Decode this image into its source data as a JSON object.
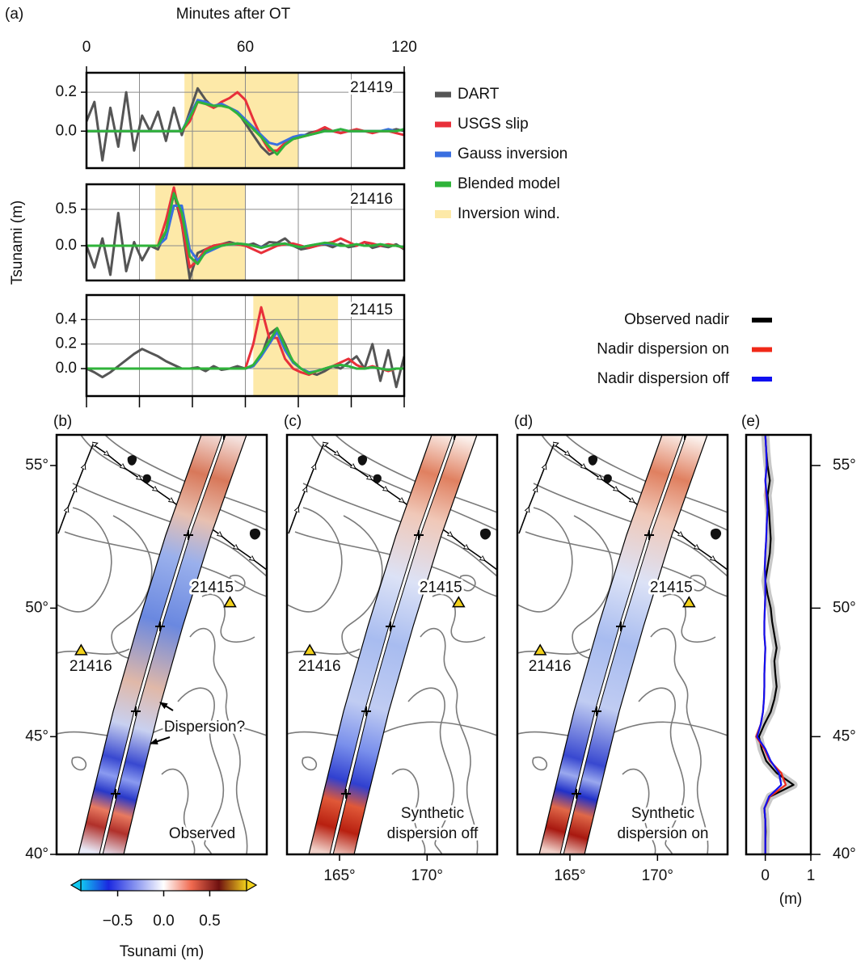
{
  "chart_data": [
    {
      "type": "line",
      "panel_label": "(a)",
      "xlabel": "Minutes after OT",
      "ylabel": "Tsunami (m)",
      "annotation": "21419",
      "x": [
        0,
        3,
        6,
        9,
        12,
        15,
        18,
        21,
        24,
        27,
        30,
        33,
        36,
        39,
        42,
        45,
        48,
        51,
        54,
        57,
        60,
        63,
        66,
        69,
        72,
        75,
        78,
        81,
        84,
        87,
        90,
        93,
        96,
        99,
        102,
        105,
        108,
        111,
        114,
        117,
        120
      ],
      "xlim": [
        0,
        120
      ],
      "xticks": [
        0,
        60,
        120
      ],
      "xgrid": [
        20,
        40,
        60,
        80,
        100
      ],
      "ylim": [
        -0.19,
        0.3
      ],
      "yticks": [
        0.2,
        {
          "value": 0,
          "label": "0.0"
        }
      ],
      "window": [
        37,
        80
      ],
      "window_label": "Inversion wind.",
      "window_color": "#fde9a8",
      "series": [
        {
          "name": "DART",
          "color": "#555555",
          "values": [
            0.05,
            0.15,
            -0.15,
            0.12,
            -0.08,
            0.2,
            -0.1,
            0.08,
            0.0,
            0.1,
            -0.05,
            0.12,
            -0.02,
            0.1,
            0.22,
            0.16,
            0.12,
            0.14,
            0.12,
            0.1,
            0.04,
            -0.02,
            -0.08,
            -0.12,
            -0.1,
            -0.07,
            -0.04,
            -0.03,
            -0.01,
            0.0,
            0.01,
            0.0,
            -0.01,
            0.0,
            0.0,
            0.0,
            0.0,
            0.0,
            0.0,
            0.01,
            0.0
          ]
        },
        {
          "name": "USGS slip",
          "color": "#e8303a",
          "values": [
            0,
            0,
            0,
            0,
            0,
            0,
            0,
            0,
            0,
            0,
            0,
            0,
            0.0,
            0.05,
            0.15,
            0.14,
            0.12,
            0.15,
            0.17,
            0.2,
            0.16,
            0.06,
            -0.03,
            -0.1,
            -0.1,
            -0.06,
            -0.04,
            -0.03,
            -0.02,
            0.0,
            0.02,
            0.0,
            -0.01,
            0.0,
            0.01,
            0.0,
            -0.01,
            0.0,
            0.0,
            -0.01,
            -0.02
          ]
        },
        {
          "name": "Gauss inversion",
          "color": "#3a6fe0",
          "values": [
            0,
            0,
            0,
            0,
            0,
            0,
            0,
            0,
            0,
            0,
            0,
            0,
            0.0,
            0.08,
            0.16,
            0.15,
            0.13,
            0.14,
            0.12,
            0.1,
            0.06,
            0.02,
            -0.02,
            -0.06,
            -0.07,
            -0.05,
            -0.03,
            -0.02,
            -0.02,
            -0.01,
            0.0,
            0.0,
            0.01,
            0.0,
            0.0,
            0.0,
            0.0,
            0.0,
            0.01,
            0.0,
            0.01
          ]
        },
        {
          "name": "Blended model",
          "color": "#2fb33a",
          "values": [
            0,
            0,
            0,
            0,
            0,
            0,
            0,
            0,
            0,
            0,
            0,
            0,
            0.0,
            0.07,
            0.15,
            0.14,
            0.13,
            0.13,
            0.12,
            0.09,
            0.05,
            0.01,
            -0.03,
            -0.08,
            -0.12,
            -0.07,
            -0.04,
            -0.03,
            -0.02,
            -0.01,
            0.0,
            0.0,
            0.01,
            0.0,
            0.0,
            0.0,
            0.0,
            0.0,
            0.0,
            0.0,
            0.01
          ]
        }
      ]
    },
    {
      "type": "line",
      "annotation": "21416",
      "x": [
        0,
        3,
        6,
        9,
        12,
        15,
        18,
        21,
        24,
        27,
        30,
        33,
        36,
        39,
        42,
        45,
        48,
        51,
        54,
        57,
        60,
        63,
        66,
        69,
        72,
        75,
        78,
        81,
        84,
        87,
        90,
        93,
        96,
        99,
        102,
        105,
        108,
        111,
        114,
        117,
        120
      ],
      "xlim": [
        0,
        120
      ],
      "xgrid": [
        20,
        40,
        60,
        80,
        100
      ],
      "ylim": [
        -0.478,
        0.844
      ],
      "yticks": [
        0.5,
        {
          "value": 0,
          "label": "0.0"
        }
      ],
      "window": [
        26,
        60
      ],
      "window_color": "#fde9a8",
      "series": [
        {
          "name": "DART",
          "color": "#555555",
          "values": [
            0.0,
            -0.3,
            0.1,
            -0.4,
            0.45,
            -0.35,
            0.05,
            -0.2,
            0.0,
            -0.05,
            0.2,
            0.72,
            0.3,
            -0.45,
            -0.1,
            -0.05,
            0.0,
            0.02,
            0.05,
            0.02,
            0.0,
            0.03,
            -0.02,
            0.05,
            0.04,
            0.1,
            0.0,
            -0.05,
            -0.03,
            0.0,
            0.02,
            -0.02,
            0.03,
            -0.02,
            0.0,
            0.05,
            -0.03,
            0.0,
            -0.02,
            0.02,
            -0.05
          ]
        },
        {
          "name": "USGS slip",
          "color": "#e8303a",
          "values": [
            0,
            0,
            0,
            0,
            0,
            0,
            0,
            0,
            0,
            0,
            0.35,
            0.8,
            0.3,
            -0.3,
            -0.2,
            -0.05,
            0.0,
            0.02,
            0.03,
            0.02,
            0.0,
            -0.05,
            -0.1,
            -0.05,
            0.0,
            0.02,
            0.03,
            0.0,
            -0.03,
            0.0,
            0.03,
            0.05,
            0.1,
            0.05,
            0.0,
            0.05,
            0.03,
            0.0,
            0.02,
            0.0,
            -0.03
          ]
        },
        {
          "name": "Gauss inversion",
          "color": "#3a6fe0",
          "values": [
            0,
            0,
            0,
            0,
            0,
            0,
            0,
            0,
            0,
            0,
            0.1,
            0.55,
            0.55,
            -0.05,
            -0.2,
            -0.1,
            -0.05,
            0.0,
            0.02,
            0.03,
            0.02,
            0.0,
            -0.02,
            0.0,
            0.02,
            0.03,
            0.0,
            -0.02,
            0.0,
            0.02,
            0.03,
            0.02,
            0.0,
            0.0,
            0.02,
            0.0,
            0.0,
            0.02,
            0.0,
            0.0,
            -0.02
          ]
        },
        {
          "name": "Blended model",
          "color": "#2fb33a",
          "values": [
            0,
            0,
            0,
            0,
            0,
            0,
            0,
            0,
            0,
            0,
            0.2,
            0.72,
            0.45,
            -0.15,
            -0.25,
            -0.08,
            -0.03,
            0.0,
            0.02,
            0.03,
            0.02,
            0.0,
            -0.03,
            0.0,
            0.02,
            0.03,
            0.0,
            -0.02,
            0.0,
            0.02,
            0.04,
            0.03,
            0.0,
            0.0,
            0.02,
            0.0,
            0.0,
            0.02,
            0.0,
            0.0,
            -0.02
          ]
        }
      ]
    },
    {
      "type": "line",
      "annotation": "21415",
      "x": [
        0,
        3,
        6,
        9,
        12,
        15,
        18,
        21,
        24,
        27,
        30,
        33,
        36,
        39,
        42,
        45,
        48,
        51,
        54,
        57,
        60,
        63,
        66,
        69,
        72,
        75,
        78,
        81,
        84,
        87,
        90,
        93,
        96,
        99,
        102,
        105,
        108,
        111,
        114,
        117,
        120
      ],
      "xlim": [
        0,
        120
      ],
      "xgrid": [
        20,
        40,
        60,
        80,
        100
      ],
      "ylim": [
        -0.224,
        0.6
      ],
      "yticks": [
        0.4,
        0.2,
        {
          "value": 0,
          "label": "0.0"
        }
      ],
      "window": [
        63,
        95
      ],
      "window_color": "#fde9a8",
      "series": [
        {
          "name": "DART",
          "color": "#555555",
          "values": [
            0.0,
            -0.03,
            -0.07,
            -0.03,
            0.02,
            0.07,
            0.12,
            0.16,
            0.13,
            0.1,
            0.06,
            0.03,
            0.0,
            0.0,
            0.01,
            -0.02,
            0.02,
            -0.01,
            0.0,
            0.02,
            0.0,
            0.02,
            0.1,
            0.28,
            0.33,
            0.2,
            0.05,
            0.0,
            -0.03,
            -0.05,
            -0.02,
            0.02,
            0.0,
            0.05,
            0.1,
            0.0,
            0.2,
            -0.1,
            0.15,
            -0.15,
            0.1
          ]
        },
        {
          "name": "USGS slip",
          "color": "#e8303a",
          "values": [
            0,
            0,
            0,
            0,
            0,
            0,
            0,
            0,
            0,
            0,
            0,
            0,
            0,
            0,
            0,
            0,
            0,
            0,
            0,
            0,
            0,
            0.2,
            0.5,
            0.25,
            0.25,
            0.08,
            0.0,
            -0.03,
            -0.05,
            -0.02,
            0.0,
            0.02,
            0.05,
            0.08,
            0.03,
            0.0,
            0.02,
            0.0,
            -0.02,
            0.0,
            0.0
          ]
        },
        {
          "name": "Gauss inversion",
          "color": "#3a6fe0",
          "values": [
            0,
            0,
            0,
            0,
            0,
            0,
            0,
            0,
            0,
            0,
            0,
            0,
            0,
            0,
            0,
            0,
            0,
            0,
            0,
            0,
            0,
            0.02,
            0.1,
            0.2,
            0.3,
            0.15,
            0.05,
            0.0,
            -0.03,
            -0.02,
            0.0,
            0.02,
            0.03,
            0.02,
            0.0,
            0.0,
            0.01,
            0.0,
            -0.01,
            0.0,
            0.0
          ]
        },
        {
          "name": "Blended model",
          "color": "#2fb33a",
          "values": [
            0,
            0,
            0,
            0,
            0,
            0,
            0,
            0,
            0,
            0,
            0,
            0,
            0,
            0,
            0,
            0,
            0,
            0,
            0,
            0,
            0,
            0.03,
            0.12,
            0.22,
            0.33,
            0.18,
            0.06,
            0.0,
            -0.04,
            -0.02,
            0.0,
            0.02,
            0.03,
            0.02,
            0.0,
            0.0,
            0.01,
            0.0,
            -0.01,
            0.0,
            0.0
          ]
        }
      ]
    },
    {
      "type": "map",
      "panel_label": "(b)",
      "annotation": [
        "Observed"
      ],
      "callout": "Dispersion?",
      "xlim": [
        162,
        174
      ],
      "ylim": [
        40,
        56
      ],
      "yticks": [
        {
          "value": 40,
          "label": "40°"
        },
        {
          "value": 45,
          "label": "45°"
        },
        {
          "value": 50,
          "label": "50°"
        },
        {
          "value": 55,
          "label": "55°"
        }
      ],
      "station_color": "#f2d11b",
      "stations": [
        {
          "name": "21415",
          "lon": 171.9,
          "lat": 50.2
        },
        {
          "name": "21416",
          "lon": 163.4,
          "lat": 48.4
        }
      ]
    },
    {
      "type": "map",
      "panel_label": "(c)",
      "annotation": [
        "Synthetic",
        "dispersion off"
      ],
      "xlim": [
        162,
        174
      ],
      "ylim": [
        40,
        56
      ],
      "xticks": [
        {
          "value": 165,
          "label": "165°"
        },
        {
          "value": 170,
          "label": "170°"
        }
      ],
      "station_color": "#f2d11b",
      "stations": [
        {
          "name": "21415",
          "lon": 171.8,
          "lat": 50.2
        },
        {
          "name": "21416",
          "lon": 163.3,
          "lat": 48.4
        }
      ]
    },
    {
      "type": "map",
      "panel_label": "(d)",
      "annotation": [
        "Synthetic",
        "dispersion on"
      ],
      "xlim": [
        162,
        174
      ],
      "ylim": [
        40,
        56
      ],
      "xticks": [
        {
          "value": 165,
          "label": "165°"
        },
        {
          "value": 170,
          "label": "170°"
        }
      ],
      "station_color": "#f2d11b",
      "stations": [
        {
          "name": "21415",
          "lon": 171.8,
          "lat": 50.2
        },
        {
          "name": "21416",
          "lon": 163.3,
          "lat": 48.4
        }
      ]
    },
    {
      "type": "profile",
      "panel_label": "(e)",
      "xlabel": "(m)",
      "y": [
        40,
        40.5,
        41,
        41.5,
        42,
        42.5,
        43,
        43.5,
        44,
        44.5,
        45,
        45.5,
        46,
        46.5,
        47,
        47.5,
        48,
        48.5,
        49,
        49.5,
        50,
        50.5,
        51,
        51.5,
        52,
        52.5,
        53,
        53.5,
        54,
        54.5,
        55,
        55.5,
        56
      ],
      "xlim": [
        -0.42,
        1
      ],
      "xticks": [
        0,
        1
      ],
      "ylim": [
        40,
        56
      ],
      "yticks": [
        {
          "value": 40,
          "label": "40°"
        },
        {
          "value": 45,
          "label": "45°"
        },
        {
          "value": 50,
          "label": "50°"
        },
        {
          "value": 55,
          "label": "55°"
        }
      ],
      "band_color": "#c8c8c8",
      "series": [
        {
          "name": "Observed nadir",
          "color": "#000000",
          "values": [
            0.0,
            0.0,
            0.01,
            0.0,
            -0.02,
            0.1,
            0.62,
            0.25,
            0.02,
            -0.08,
            -0.14,
            -0.02,
            0.12,
            0.2,
            0.25,
            0.22,
            0.2,
            0.25,
            0.2,
            0.15,
            0.12,
            0.05,
            0.0,
            0.05,
            0.1,
            0.12,
            0.1,
            0.08,
            0.05,
            0.1,
            0.05,
            0.02,
            0.0
          ]
        },
        {
          "name": "Nadir dispersion on",
          "color": "#f02818",
          "values": [
            0,
            0,
            0,
            0,
            -0.02,
            0.1,
            0.45,
            0.35,
            0.1,
            -0.02,
            -0.2,
            -0.1,
            -0.05,
            -0.03,
            -0.02,
            -0.02,
            -0.01,
            0.0,
            -0.02,
            -0.02,
            -0.01,
            0.0,
            0.0,
            -0.01,
            0.0,
            0.02,
            0.03,
            0.05,
            0.02,
            0.0,
            0.03,
            0.02,
            0.0
          ]
        },
        {
          "name": "Nadir dispersion off",
          "color": "#1010f0",
          "values": [
            0,
            0,
            0,
            0,
            -0.02,
            0.08,
            0.35,
            0.3,
            0.12,
            0.0,
            -0.18,
            -0.1,
            -0.05,
            -0.03,
            -0.02,
            -0.02,
            -0.01,
            0.0,
            -0.02,
            -0.02,
            -0.01,
            0.0,
            0.0,
            -0.01,
            0.0,
            0.02,
            0.03,
            0.05,
            0.03,
            0.0,
            0.03,
            0.02,
            0.0
          ]
        }
      ]
    },
    {
      "type": "colorbar",
      "label": "Tsunami (m)",
      "xlim": [
        -0.9,
        0.9
      ],
      "xticks": [
        {
          "value": -0.5,
          "label": "−0.5"
        },
        {
          "value": 0,
          "label": "0.0"
        },
        0.5
      ],
      "colors": [
        "#12c8f0",
        "#1a28e0",
        "#8a96f0",
        "#ffffff",
        "#f06a50",
        "#6e1010",
        "#f2d21c"
      ]
    }
  ]
}
